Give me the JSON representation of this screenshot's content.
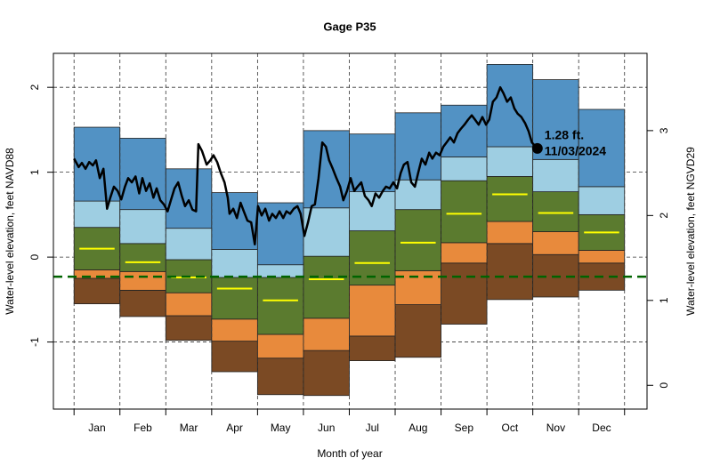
{
  "chart_data": {
    "type": "band",
    "title": "Gage P35",
    "xlabel": "Month of year",
    "ylabel": "Water-level elevation, feet NAVD88",
    "y2label": "Water-level elevation, feet NGVD29",
    "categories": [
      "Jan",
      "Feb",
      "Mar",
      "Apr",
      "May",
      "Jun",
      "Jul",
      "Aug",
      "Sep",
      "Oct",
      "Nov",
      "Dec"
    ],
    "xlim": [
      -0.45,
      12.49
    ],
    "ylim": [
      -1.79,
      2.4
    ],
    "yticks": [
      -1,
      0,
      1,
      2
    ],
    "y2lim": [
      -0.28,
      3.91
    ],
    "y2ticks": [
      0,
      1,
      2,
      3
    ],
    "grid": true,
    "levels": [
      [
        -0.55,
        -0.7,
        -0.98,
        -1.35,
        -1.62,
        -1.63,
        -1.22,
        -1.18,
        -0.79,
        -0.5,
        -0.47,
        -0.39
      ],
      [
        -0.25,
        -0.39,
        -0.69,
        -0.99,
        -1.19,
        -1.1,
        -0.93,
        -0.56,
        -0.07,
        0.16,
        0.03,
        -0.07
      ],
      [
        -0.15,
        -0.17,
        -0.42,
        -0.73,
        -0.91,
        -0.72,
        -0.33,
        -0.16,
        0.17,
        0.42,
        0.3,
        0.08
      ],
      [
        0.35,
        0.16,
        -0.03,
        -0.24,
        -0.24,
        0.01,
        0.31,
        0.56,
        0.9,
        0.95,
        0.77,
        0.5
      ],
      [
        0.66,
        0.56,
        0.34,
        0.09,
        -0.09,
        0.58,
        0.77,
        0.91,
        1.18,
        1.3,
        1.15,
        0.83
      ],
      [
        1.53,
        1.4,
        1.04,
        0.76,
        0.64,
        1.49,
        1.45,
        1.7,
        1.79,
        2.27,
        2.09,
        1.74
      ]
    ],
    "band_colors": [
      "#7b4a24",
      "#e88a3c",
      "#5b7b2f",
      "#9ecee2",
      "#5292c4"
    ],
    "median": {
      "color": "#ffff00",
      "values": [
        0.1,
        -0.06,
        -0.24,
        -0.37,
        -0.51,
        -0.26,
        -0.07,
        0.17,
        0.51,
        0.74,
        0.52,
        0.29
      ]
    },
    "reference_line": {
      "value": -0.23,
      "color": "#006400"
    },
    "line": {
      "color": "#000000",
      "x": [
        0,
        0.1,
        0.17,
        0.25,
        0.33,
        0.41,
        0.48,
        0.56,
        0.64,
        0.72,
        0.79,
        0.87,
        0.95,
        1.03,
        1.11,
        1.18,
        1.26,
        1.34,
        1.42,
        1.49,
        1.57,
        1.65,
        1.73,
        1.8,
        1.88,
        1.96,
        2.04,
        2.11,
        2.19,
        2.27,
        2.35,
        2.42,
        2.5,
        2.58,
        2.66,
        2.71,
        2.79,
        2.89,
        2.97,
        3.04,
        3.12,
        3.2,
        3.28,
        3.35,
        3.39,
        3.47,
        3.55,
        3.63,
        3.7,
        3.78,
        3.86,
        3.94,
        4.01,
        4.09,
        4.17,
        4.25,
        4.32,
        4.4,
        4.48,
        4.56,
        4.63,
        4.71,
        4.79,
        4.87,
        4.94,
        5.02,
        5.1,
        5.18,
        5.25,
        5.33,
        5.41,
        5.49,
        5.56,
        5.64,
        5.72,
        5.8,
        5.87,
        5.95,
        6.03,
        6.11,
        6.18,
        6.26,
        6.34,
        6.42,
        6.49,
        6.57,
        6.65,
        6.73,
        6.8,
        6.88,
        6.96,
        7.04,
        7.12,
        7.19,
        7.27,
        7.35,
        7.43,
        7.5,
        7.58,
        7.66,
        7.74,
        7.81,
        7.89,
        7.97,
        8.05,
        8.12,
        8.2,
        8.28,
        8.36,
        8.43,
        8.51,
        8.59,
        8.67,
        8.74,
        8.82,
        8.9,
        8.98,
        9.05,
        9.13,
        9.21,
        9.29,
        9.36,
        9.44,
        9.52,
        9.6,
        9.67,
        9.75,
        9.83,
        9.91,
        9.98,
        10.1
      ],
      "values": [
        1.16,
        1.06,
        1.11,
        1.04,
        1.12,
        1.08,
        1.14,
        0.93,
        1.04,
        0.57,
        0.7,
        0.83,
        0.78,
        0.68,
        0.83,
        0.93,
        0.88,
        0.95,
        0.75,
        0.93,
        0.78,
        0.87,
        0.7,
        0.81,
        0.67,
        0.62,
        0.54,
        0.67,
        0.81,
        0.88,
        0.72,
        0.6,
        0.67,
        0.56,
        0.54,
        1.33,
        1.25,
        1.09,
        1.14,
        1.2,
        1.12,
        0.99,
        0.88,
        0.7,
        0.51,
        0.57,
        0.46,
        0.64,
        0.54,
        0.43,
        0.41,
        0.15,
        0.6,
        0.49,
        0.57,
        0.43,
        0.51,
        0.46,
        0.54,
        0.46,
        0.54,
        0.51,
        0.57,
        0.6,
        0.51,
        0.25,
        0.41,
        0.6,
        0.62,
        0.93,
        1.35,
        1.3,
        1.14,
        1.04,
        0.93,
        0.83,
        0.67,
        0.78,
        0.93,
        0.78,
        0.83,
        0.88,
        0.72,
        0.67,
        0.6,
        0.75,
        0.7,
        0.78,
        0.83,
        0.81,
        0.88,
        0.81,
        0.99,
        1.09,
        1.12,
        0.88,
        0.83,
        0.99,
        1.16,
        1.09,
        1.23,
        1.16,
        1.23,
        1.2,
        1.3,
        1.35,
        1.41,
        1.35,
        1.46,
        1.51,
        1.56,
        1.62,
        1.67,
        1.62,
        1.56,
        1.65,
        1.56,
        1.62,
        1.83,
        1.88,
        2.0,
        1.93,
        1.83,
        1.88,
        1.75,
        1.69,
        1.65,
        1.58,
        1.48,
        1.35,
        1.28
      ]
    },
    "annotation": {
      "x": 10.1,
      "value": 1.28,
      "lines": [
        "1.28 ft.",
        "11/03/2024"
      ]
    }
  }
}
